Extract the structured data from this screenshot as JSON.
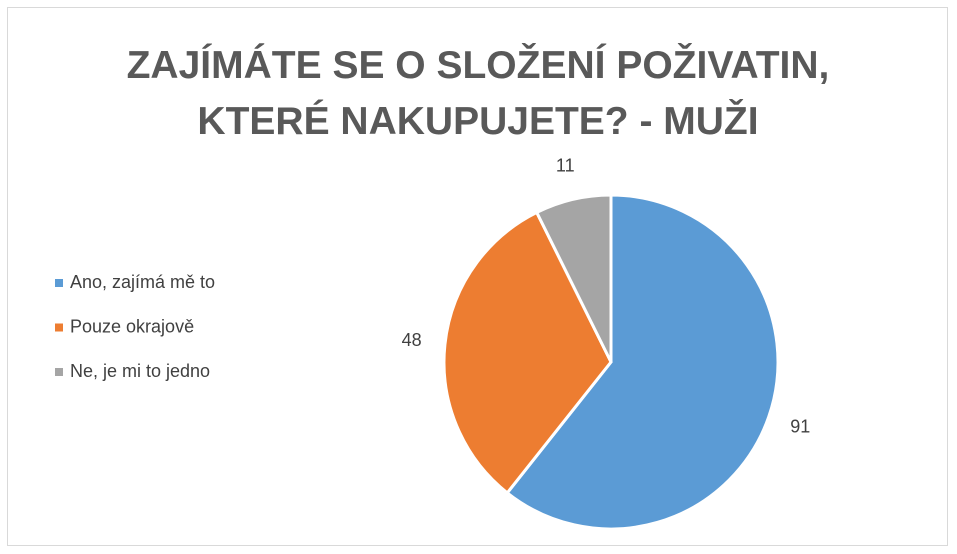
{
  "chart_data": {
    "type": "pie",
    "title": "ZAJÍMÁTE SE O SLOŽENÍ POŽIVATIN, KTERÉ NAKUPUJETE? - MUŽI",
    "categories": [
      "Ano, zajímá mě to",
      "Pouze okrajově",
      "Ne, je mi to jedno"
    ],
    "values": [
      91,
      48,
      11
    ],
    "colors": [
      "#5b9bd5",
      "#ed7d31",
      "#a5a5a5"
    ],
    "legend": "left"
  }
}
